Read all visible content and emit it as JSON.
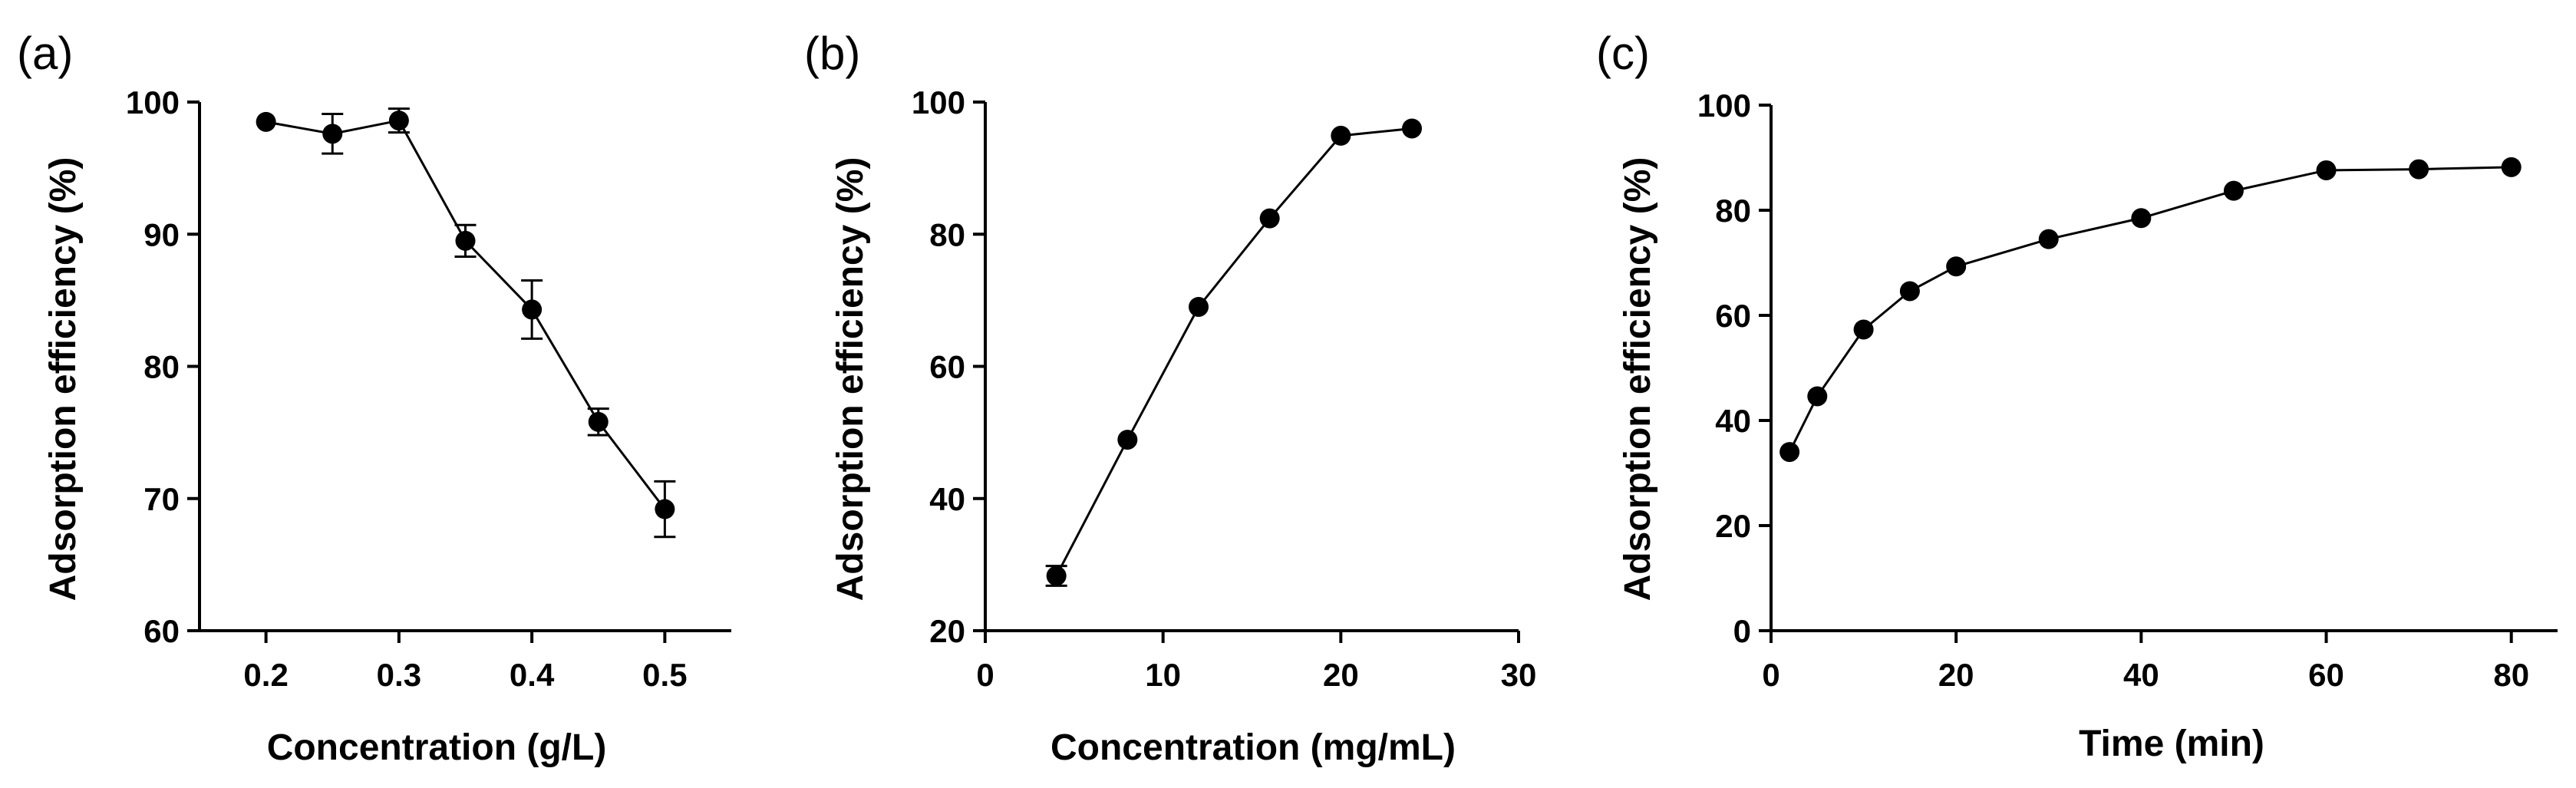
{
  "chart_data": [
    {
      "type": "line",
      "panel_label": "(a)",
      "title": "",
      "xlabel": "Concentration (g/L)",
      "ylabel": "Adsorption efficiency (%)",
      "xlim": [
        0.15,
        0.55
      ],
      "ylim": [
        60,
        100
      ],
      "xticks": [
        0.2,
        0.3,
        0.4,
        0.5
      ],
      "yticks": [
        60,
        70,
        80,
        90,
        100
      ],
      "x_decimals": 1,
      "x": [
        0.2,
        0.25,
        0.3,
        0.35,
        0.4,
        0.45,
        0.5
      ],
      "series": [
        {
          "values": [
            98.5,
            97.6,
            98.6,
            89.5,
            84.3,
            75.8,
            69.2
          ],
          "error": [
            0,
            1.5,
            0.9,
            1.2,
            2.2,
            1.0,
            2.1
          ]
        }
      ],
      "grid": false,
      "legend": "none"
    },
    {
      "type": "line",
      "panel_label": "(b)",
      "title": "",
      "xlabel": "Concentration (mg/mL)",
      "ylabel": "Adsorption efficiency (%)",
      "xlim": [
        0,
        30
      ],
      "ylim": [
        20,
        100
      ],
      "xticks": [
        0,
        10,
        20,
        30
      ],
      "yticks": [
        20,
        40,
        60,
        80,
        100
      ],
      "x_decimals": 0,
      "x": [
        4,
        8,
        12,
        16,
        20,
        24
      ],
      "series": [
        {
          "values": [
            28.3,
            48.9,
            69.0,
            82.4,
            94.9,
            96.0
          ],
          "error": [
            1.5,
            0,
            0,
            0,
            0,
            0
          ]
        }
      ],
      "grid": false,
      "legend": "none"
    },
    {
      "type": "line",
      "panel_label": "(c)",
      "title": "",
      "xlabel": "Time (min)",
      "ylabel": "Adsorption efficiency (%)",
      "xlim": [
        0,
        85
      ],
      "ylim": [
        0,
        100
      ],
      "xticks": [
        0,
        20,
        40,
        60,
        80
      ],
      "yticks": [
        0,
        20,
        40,
        60,
        80,
        100
      ],
      "x_decimals": 0,
      "x": [
        2,
        5,
        10,
        15,
        20,
        30,
        40,
        50,
        60,
        70,
        80
      ],
      "series": [
        {
          "values": [
            34.0,
            44.6,
            57.3,
            64.6,
            69.3,
            74.5,
            78.5,
            83.7,
            87.6,
            87.8,
            88.2
          ],
          "error": [
            0,
            0,
            0,
            0,
            0,
            0,
            0,
            0,
            0,
            0,
            0
          ]
        }
      ],
      "grid": false,
      "legend": "none"
    }
  ]
}
